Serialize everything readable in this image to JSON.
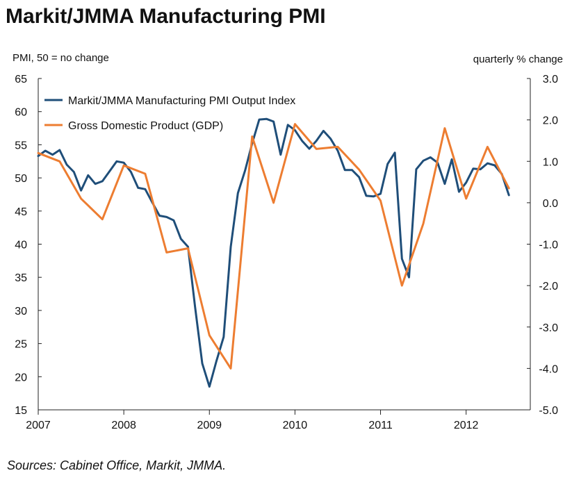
{
  "chart_data": {
    "type": "line",
    "title": "Markit/JMMA Manufacturing PMI",
    "ylabel_left": "PMI, 50 = no change",
    "ylabel_right": "quarterly % change",
    "source": "Sources: Cabinet Office, Markit, JMMA.",
    "x_ticks": [
      "2007",
      "2008",
      "2009",
      "2010",
      "2011",
      "2012"
    ],
    "x_range": [
      2007.0,
      2012.75
    ],
    "y_left_ticks": [
      "65",
      "60",
      "55",
      "50",
      "45",
      "40",
      "35",
      "30",
      "25",
      "20",
      "15"
    ],
    "y_left_range": [
      15,
      65
    ],
    "y_right_ticks": [
      "3.0",
      "2.0",
      "1.0",
      "0.0",
      "-1.0",
      "-2.0",
      "-3.0",
      "-4.0",
      "-5.0"
    ],
    "y_right_range": [
      -5.0,
      3.0
    ],
    "grid": false,
    "legend_position": "top-left",
    "series": [
      {
        "name": "Markit/JMMA Manufacturing PMI Output Index",
        "color": "#1f4e79",
        "axis": "left",
        "x": [
          2007.0,
          2007.083,
          2007.167,
          2007.25,
          2007.333,
          2007.417,
          2007.5,
          2007.583,
          2007.667,
          2007.75,
          2007.833,
          2007.917,
          2008.0,
          2008.083,
          2008.167,
          2008.25,
          2008.333,
          2008.417,
          2008.5,
          2008.583,
          2008.667,
          2008.75,
          2008.833,
          2008.917,
          2009.0,
          2009.083,
          2009.167,
          2009.25,
          2009.333,
          2009.417,
          2009.5,
          2009.583,
          2009.667,
          2009.75,
          2009.833,
          2009.917,
          2010.0,
          2010.083,
          2010.167,
          2010.25,
          2010.333,
          2010.417,
          2010.5,
          2010.583,
          2010.667,
          2010.75,
          2010.833,
          2010.917,
          2011.0,
          2011.083,
          2011.167,
          2011.25,
          2011.333,
          2011.417,
          2011.5,
          2011.583,
          2011.667,
          2011.75,
          2011.833,
          2011.917,
          2012.0,
          2012.083,
          2012.167,
          2012.25,
          2012.333,
          2012.417,
          2012.5
        ],
        "values": [
          53.3,
          54.1,
          53.5,
          54.2,
          52.0,
          50.9,
          48.1,
          50.4,
          49.1,
          49.5,
          51.0,
          52.5,
          52.3,
          50.9,
          48.5,
          48.3,
          46.3,
          44.3,
          44.1,
          43.6,
          40.8,
          39.6,
          30.5,
          22.0,
          18.5,
          22.4,
          26.0,
          39.6,
          47.7,
          51.1,
          55.2,
          58.8,
          58.9,
          58.5,
          53.5,
          58.0,
          57.2,
          55.6,
          54.4,
          55.6,
          57.1,
          55.9,
          54.1,
          51.2,
          51.2,
          50.1,
          47.3,
          47.2,
          47.6,
          52.1,
          53.8,
          37.8,
          35.0,
          51.3,
          52.6,
          53.1,
          52.3,
          49.1,
          52.8,
          47.9,
          49.3,
          51.4,
          51.3,
          52.2,
          51.9,
          50.6,
          47.4
        ]
      },
      {
        "name": "Gross Domestic Product (GDP)",
        "color": "#ed7d31",
        "axis": "right",
        "x": [
          2007.0,
          2007.25,
          2007.5,
          2007.75,
          2008.0,
          2008.25,
          2008.5,
          2008.75,
          2009.0,
          2009.25,
          2009.5,
          2009.75,
          2010.0,
          2010.25,
          2010.5,
          2010.75,
          2011.0,
          2011.25,
          2011.5,
          2011.75,
          2012.0,
          2012.25,
          2012.5
        ],
        "values": [
          1.2,
          1.0,
          0.1,
          -0.4,
          0.9,
          0.7,
          -1.2,
          -1.1,
          -3.2,
          -4.0,
          1.6,
          0.0,
          1.9,
          1.3,
          1.35,
          0.8,
          0.05,
          -2.0,
          -0.5,
          1.8,
          0.1,
          1.35,
          0.35
        ]
      }
    ]
  }
}
